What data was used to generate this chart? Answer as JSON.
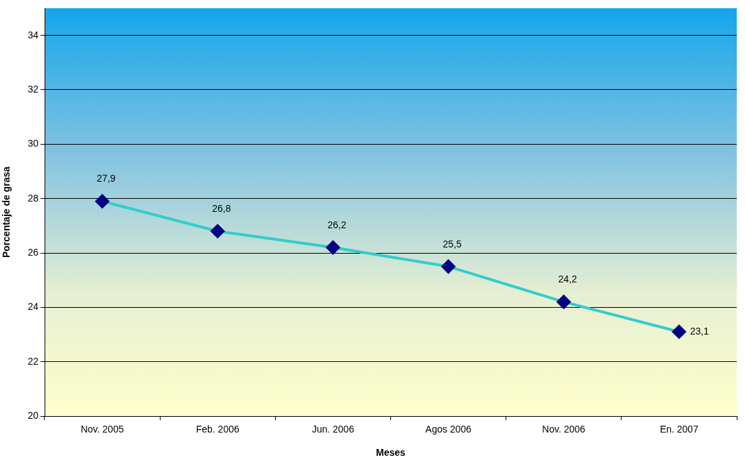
{
  "chart_data": {
    "type": "line",
    "xlabel": "Meses",
    "ylabel": "Porcentaje de grasa",
    "categories": [
      "Nov. 2005",
      "Feb. 2006",
      "Jun. 2006",
      "Agos 2006",
      "Nov. 2006",
      "En. 2007"
    ],
    "series": [
      {
        "color": "#33cccc",
        "values": [
          27.9,
          26.8,
          26.2,
          25.5,
          24.2,
          23.1
        ],
        "value_labels": [
          "27,9",
          "26,8",
          "26,2",
          "25,5",
          "24,2",
          "23,1"
        ]
      }
    ],
    "ylim": [
      20,
      35
    ],
    "yticks": [
      20,
      22,
      24,
      26,
      28,
      30,
      32,
      34
    ],
    "grid": "y",
    "legend": false,
    "marker": "diamond",
    "line_style": "solid"
  }
}
